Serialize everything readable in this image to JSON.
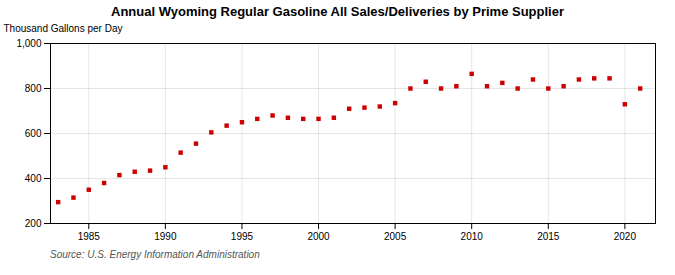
{
  "chart_data": {
    "type": "scatter",
    "title": "Annual Wyoming Regular Gasoline All Sales/Deliveries by Prime Supplier",
    "ylabel": "Thousand Gallons per Day",
    "source": "Source: U.S. Energy Information Administration",
    "x": [
      1983,
      1984,
      1985,
      1986,
      1987,
      1988,
      1989,
      1990,
      1991,
      1992,
      1993,
      1994,
      1995,
      1996,
      1997,
      1998,
      1999,
      2000,
      2001,
      2002,
      2003,
      2004,
      2005,
      2006,
      2007,
      2008,
      2009,
      2010,
      2011,
      2012,
      2013,
      2014,
      2015,
      2016,
      2017,
      2018,
      2019,
      2020,
      2021
    ],
    "values": [
      295,
      315,
      350,
      380,
      415,
      430,
      435,
      450,
      515,
      555,
      605,
      635,
      650,
      665,
      680,
      670,
      665,
      665,
      670,
      710,
      715,
      720,
      735,
      800,
      830,
      800,
      810,
      865,
      810,
      825,
      800,
      840,
      800,
      810,
      840,
      845,
      845,
      730,
      800
    ],
    "color": "#cc0000",
    "marker": "square",
    "xlim": [
      1982.5,
      2022
    ],
    "xticks": [
      1985,
      1990,
      1995,
      2000,
      2005,
      2010,
      2015,
      2020
    ],
    "ylim": [
      200,
      1000
    ],
    "yticks": [
      200,
      400,
      600,
      800,
      {
        "value": 1000,
        "label": "1,000"
      }
    ],
    "grid": true
  }
}
